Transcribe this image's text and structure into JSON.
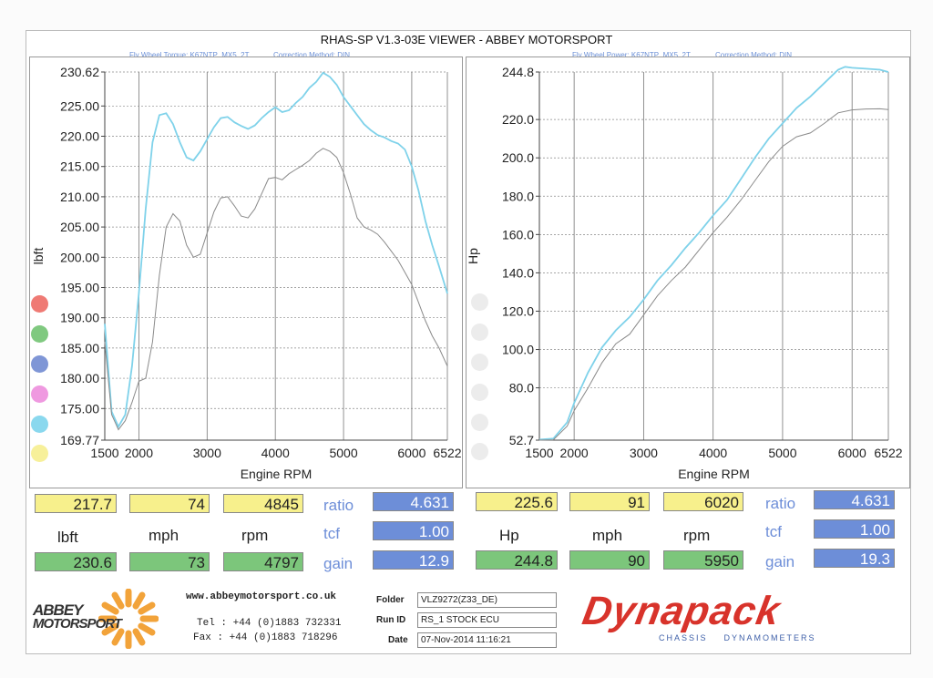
{
  "header": {
    "title": "RHAS-SP V1.3-03E VIEWER - ABBEY MOTORSPORT",
    "left_subtitle": "Fly Wheel Torque: K67NTP_MX5_2T",
    "left_correction": "Correction Method: DIN",
    "right_subtitle": "Fly Wheel Power: K67NTP_MX5_2T",
    "right_correction": "Correction Method: DIN"
  },
  "chart_data": [
    {
      "type": "line",
      "ylabel": "lbft",
      "xlabel": "Engine RPM",
      "xlim": [
        1500,
        6522
      ],
      "ylim": [
        169.77,
        230.62
      ],
      "x_ticks": [
        "1500",
        "2000",
        "3000",
        "4000",
        "5000",
        "6000",
        "6522"
      ],
      "y_ticks": [
        "230.62",
        "225.00",
        "220.00",
        "215.00",
        "210.00",
        "205.00",
        "200.00",
        "195.00",
        "190.00",
        "185.00",
        "180.00",
        "175.00",
        "169.77"
      ],
      "series": [
        {
          "color": "#7fd2ea",
          "x": [
            1500,
            1600,
            1700,
            1800,
            1900,
            2000,
            2100,
            2200,
            2300,
            2400,
            2500,
            2600,
            2700,
            2800,
            2900,
            3000,
            3100,
            3200,
            3300,
            3400,
            3500,
            3600,
            3700,
            3800,
            3900,
            4000,
            4100,
            4200,
            4300,
            4400,
            4500,
            4600,
            4700,
            4800,
            4900,
            5000,
            5100,
            5200,
            5300,
            5400,
            5500,
            5600,
            5700,
            5800,
            5900,
            6000,
            6100,
            6200,
            6300,
            6400,
            6522
          ],
          "y": [
            189,
            174.5,
            172,
            174,
            182,
            194,
            208,
            219,
            223.5,
            223.8,
            222,
            219,
            216.5,
            216,
            217.5,
            219.5,
            221.5,
            223,
            223.2,
            222.3,
            221.7,
            221.2,
            221.8,
            223,
            224,
            224.8,
            224,
            224.3,
            225.5,
            226.5,
            228,
            229,
            230.5,
            229.8,
            228.5,
            226.5,
            225,
            223.5,
            222,
            221,
            220.2,
            219.8,
            219.2,
            218.8,
            217.8,
            215,
            211,
            206,
            202,
            198.5,
            194
          ]
        },
        {
          "color": "#8a8a8a",
          "x": [
            1500,
            1600,
            1700,
            1800,
            1900,
            2000,
            2100,
            2200,
            2300,
            2400,
            2500,
            2600,
            2700,
            2800,
            2900,
            3000,
            3100,
            3200,
            3300,
            3400,
            3500,
            3600,
            3700,
            3800,
            3900,
            4000,
            4100,
            4200,
            4300,
            4400,
            4500,
            4600,
            4700,
            4800,
            4900,
            5000,
            5100,
            5200,
            5300,
            5400,
            5500,
            5600,
            5700,
            5800,
            5900,
            6000,
            6100,
            6200,
            6300,
            6400,
            6522
          ],
          "y": [
            186,
            174,
            171.5,
            173,
            176,
            179.5,
            180,
            186,
            197,
            205,
            207.2,
            206,
            202,
            200,
            200.5,
            204,
            207.5,
            209.8,
            210,
            208.5,
            206.8,
            206.5,
            208,
            210.5,
            213,
            213.2,
            212.8,
            213.8,
            214.5,
            215.2,
            216,
            217.2,
            218,
            217.5,
            216.5,
            214,
            210.5,
            206.5,
            205,
            204.5,
            203.8,
            202.5,
            201,
            199.5,
            197.5,
            195.5,
            192.5,
            189.5,
            187,
            185,
            182
          ]
        }
      ]
    },
    {
      "type": "line",
      "ylabel": "Hp",
      "xlabel": "Engine RPM",
      "xlim": [
        1500,
        6522
      ],
      "ylim": [
        52.7,
        244.8
      ],
      "x_ticks": [
        "1500",
        "2000",
        "3000",
        "4000",
        "5000",
        "6000",
        "6522"
      ],
      "y_ticks": [
        "244.8",
        "220.0",
        "200.0",
        "180.0",
        "160.0",
        "140.0",
        "120.0",
        "100.0",
        "80.0",
        "52.7"
      ],
      "series": [
        {
          "color": "#7fd2ea",
          "x": [
            1500,
            1700,
            1900,
            2000,
            2200,
            2400,
            2600,
            2800,
            3000,
            3200,
            3400,
            3600,
            3800,
            4000,
            4200,
            4400,
            4600,
            4800,
            5000,
            5200,
            5400,
            5600,
            5800,
            5900,
            6000,
            6200,
            6400,
            6522
          ],
          "y": [
            53,
            53.5,
            62,
            72,
            88,
            101,
            110,
            117,
            126,
            136,
            144,
            153,
            161,
            170,
            178,
            189,
            200,
            210,
            218,
            226,
            232,
            239,
            246,
            247.5,
            247,
            246.5,
            246,
            244.8
          ]
        },
        {
          "color": "#8a8a8a",
          "x": [
            1500,
            1700,
            1900,
            2000,
            2200,
            2400,
            2600,
            2800,
            3000,
            3200,
            3400,
            3600,
            3800,
            4000,
            4200,
            4400,
            4600,
            4800,
            5000,
            5200,
            5400,
            5600,
            5800,
            6000,
            6200,
            6400,
            6522
          ],
          "y": [
            52.7,
            52.9,
            60,
            68,
            80,
            93,
            103,
            108,
            118,
            128,
            136,
            143,
            152,
            161,
            169,
            178,
            188,
            198,
            206,
            211,
            213,
            218,
            223.5,
            225,
            225.5,
            225.6,
            225.2
          ]
        }
      ]
    }
  ],
  "left_results": {
    "row1": [
      "217.7",
      "74",
      "4845"
    ],
    "labels": [
      "lbft",
      "mph",
      "rpm"
    ],
    "row2": [
      "230.6",
      "73",
      "4797"
    ],
    "ratio_label": "ratio",
    "ratio": "4.631",
    "tcf_label": "tcf",
    "tcf": "1.00",
    "gain_label": "gain",
    "gain": "12.9"
  },
  "right_results": {
    "row1": [
      "225.6",
      "91",
      "6020"
    ],
    "labels": [
      "Hp",
      "mph",
      "rpm"
    ],
    "row2": [
      "244.8",
      "90",
      "5950"
    ],
    "ratio_label": "ratio",
    "ratio": "4.631",
    "tcf_label": "tcf",
    "tcf": "1.00",
    "gain_label": "gain",
    "gain": "19.3"
  },
  "footer": {
    "logo_line1": "ABBEY",
    "logo_line2": "MOTORSPORT",
    "website": "www.abbeymotorsport.co.uk",
    "tel": "Tel : +44 (0)1883 732331",
    "fax": "Fax : +44 (0)1883 718296",
    "folder_label": "Folder",
    "folder": "VLZ9272(Z33_DE)",
    "runid_label": "Run ID",
    "runid": "RS_1 STOCK ECU",
    "date_label": "Date",
    "date": "07-Nov-2014  11:16:21",
    "brand": "Dynapack",
    "brand_sub": "CHASSIS    DYNAMOMETERS"
  },
  "colors": {
    "dots": [
      "#ef7a74",
      "#80c980",
      "#7f96d6",
      "#ef99e0",
      "#8ad8ee",
      "#f7f09a"
    ],
    "accent_blue": "#6d8ed8",
    "brand_red": "#d8332b",
    "logo_orange": "#f2a33a"
  }
}
